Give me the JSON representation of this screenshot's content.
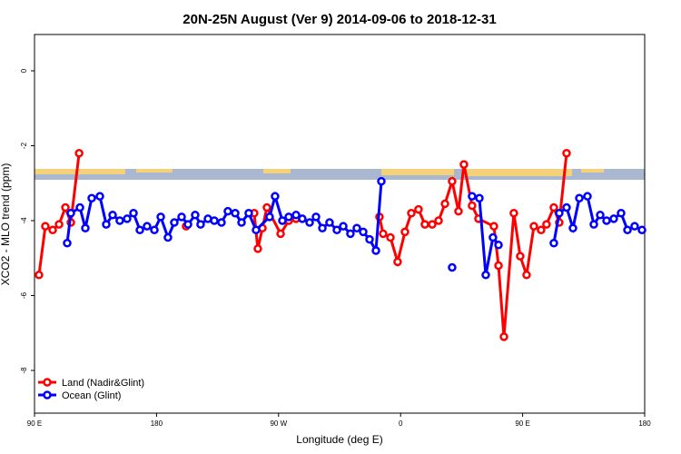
{
  "chart_data": {
    "type": "line",
    "title": "20N-25N August (Ver 9)   2014-09-06 to 2018-12-31",
    "x_label": "Longitude (deg E)",
    "y_label": "XCO2 - MLO trend (ppm)",
    "xlim": [
      90,
      540
    ],
    "xticks": [
      {
        "value": 90,
        "label": "90 E"
      },
      180,
      {
        "value": 270,
        "label": "90 W"
      },
      {
        "value": 360,
        "label": "0"
      },
      {
        "value": 450,
        "label": "90 E"
      },
      {
        "value": 540,
        "label": "180"
      }
    ],
    "ylim": [
      -9.14,
      0.97
    ],
    "yticks": [
      0,
      -2,
      -4,
      -6,
      -8
    ],
    "legend": "bottomleft",
    "series": [
      {
        "name": "Land (Nadir&Glint)",
        "color": "#ff0000",
        "x": [
          93.3,
          98.0,
          103.4,
          108.1,
          112.8,
          116.8,
          122.9,
          null,
          201.8,
          null,
          252.0,
          254.7,
          258.1,
          261.4,
          271.5,
          277.5,
          282.9,
          null,
          344.4,
          347.1,
          352.5,
          357.8,
          363.2,
          367.9,
          373.2,
          377.9,
          383.3,
          388.0,
          392.7,
          398.0,
          402.7,
          406.7,
          412.7,
          417.4,
          428.8,
          432.2,
          436.2,
          443.5,
          448.2,
          452.9,
          458.3,
          463.6,
          467.6,
          473.0,
          477.0,
          482.4
        ],
        "values": [
          -5.45,
          -4.15,
          -4.25,
          -4.1,
          -3.65,
          -4.05,
          -2.2,
          null,
          -4.15,
          null,
          -3.8,
          -4.75,
          -4.2,
          -3.65,
          -4.35,
          -4.0,
          -3.95,
          null,
          -3.9,
          -4.35,
          -4.45,
          -5.1,
          -4.3,
          -3.8,
          -3.7,
          -4.1,
          -4.1,
          -4.0,
          -3.55,
          -2.95,
          -3.75,
          -2.5,
          -3.6,
          -3.95,
          -4.15,
          -5.2,
          -7.1,
          -3.8,
          -4.95,
          -5.45,
          -4.15,
          -4.25,
          -4.1,
          -3.65,
          -4.05,
          -2.2
        ]
      },
      {
        "name": "Ocean (Glint)",
        "color": "#0000ff",
        "x": [
          114.1,
          116.8,
          123.5,
          127.5,
          132.2,
          138.2,
          142.9,
          147.6,
          152.9,
          158.3,
          163.0,
          167.7,
          173.0,
          178.4,
          183.1,
          188.4,
          193.1,
          198.5,
          203.2,
          208.5,
          212.5,
          217.9,
          222.6,
          227.9,
          232.6,
          238.0,
          242.7,
          248.0,
          253.4,
          263.4,
          267.4,
          272.8,
          277.5,
          282.9,
          287.5,
          292.9,
          297.6,
          302.3,
          307.6,
          313.0,
          317.7,
          323.0,
          327.7,
          332.4,
          337.1,
          341.8,
          345.8,
          null,
          398.0,
          null,
          412.7,
          418.1,
          422.8,
          428.1,
          432.2,
          null,
          473.0,
          477.0,
          482.4,
          487.1,
          491.8,
          497.8,
          502.5,
          507.2,
          511.9,
          517.2,
          522.6,
          527.3,
          532.6,
          538.0
        ],
        "values": [
          -4.6,
          -3.8,
          -3.65,
          -4.2,
          -3.4,
          -3.35,
          -4.1,
          -3.85,
          -4.0,
          -3.95,
          -3.8,
          -4.25,
          -4.15,
          -4.25,
          -3.9,
          -4.45,
          -4.05,
          -3.9,
          -4.1,
          -3.85,
          -4.1,
          -3.95,
          -4.0,
          -4.05,
          -3.75,
          -3.8,
          -4.05,
          -3.8,
          -4.25,
          -3.9,
          -3.35,
          -4.0,
          -3.9,
          -3.85,
          -3.95,
          -4.05,
          -3.9,
          -4.2,
          -4.05,
          -4.25,
          -4.15,
          -4.35,
          -4.2,
          -4.3,
          -4.5,
          -4.8,
          -2.95,
          null,
          -5.25,
          null,
          -3.35,
          -3.4,
          -5.45,
          -4.45,
          -4.65,
          null,
          -4.6,
          -3.8,
          -3.65,
          -4.2,
          -3.4,
          -3.35,
          -4.1,
          -3.85,
          -4.0,
          -3.95,
          -3.8,
          -4.25,
          -4.15,
          -4.25
        ]
      }
    ]
  }
}
